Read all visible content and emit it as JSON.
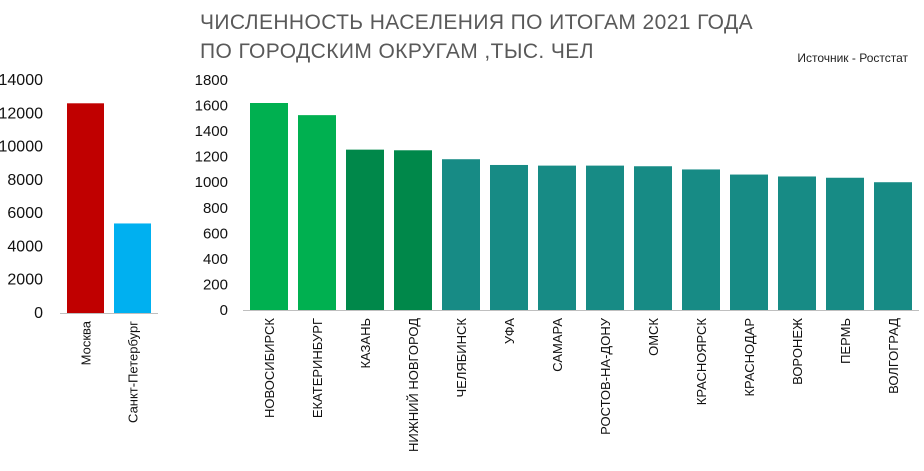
{
  "header": {
    "title_line1": "ЧИСЛЕННОСТЬ НАСЕЛЕНИЯ ПО ИТОГАМ 2021 ГОДА",
    "title_line2": "ПО ГОРОДСКИМ ОКРУГАМ ,ТЫС. ЧЕЛ",
    "source": "Источник - Ростстат"
  },
  "chart_data": [
    {
      "type": "bar",
      "title": "ЧИСЛЕННОСТЬ НАСЕЛЕНИЯ ПО ИТОГАМ 2021 ГОДА ПО ГОРОДСКИМ ОКРУГАМ ,ТЫС. ЧЕЛ",
      "categories": [
        "Москва",
        "Санкт-Петербург"
      ],
      "values": [
        12600,
        5380
      ],
      "colors": [
        "#c00000",
        "#00b0f0"
      ],
      "ylim": [
        0,
        14000
      ],
      "yticks": [
        "0",
        "2000",
        "4000",
        "6000",
        "8000",
        "10000",
        "12000",
        "14000"
      ],
      "grid": false
    },
    {
      "type": "bar",
      "categories": [
        "НОВОСИБИРСК",
        "ЕКАТЕРИНБУРГ",
        "КАЗАНЬ",
        "НИЖНИЙ НОВГОРОД",
        "ЧЕЛЯБИНСК",
        "УФА",
        "САМАРА",
        "РОСТОВ-НА-ДОНУ",
        "ОМСК",
        "КРАСНОЯРСК",
        "КРАСНОДАР",
        "ВОРОНЕЖ",
        "ПЕРМЬ",
        "ВОЛГОГРАД"
      ],
      "values": [
        1620,
        1525,
        1255,
        1250,
        1180,
        1135,
        1130,
        1130,
        1125,
        1100,
        1060,
        1045,
        1035,
        1000
      ],
      "colors": [
        "#00b050",
        "#00b050",
        "#00884a",
        "#00884a",
        "#178b85",
        "#178b85",
        "#178b85",
        "#178b85",
        "#178b85",
        "#178b85",
        "#178b85",
        "#178b85",
        "#178b85",
        "#178b85"
      ],
      "ylim": [
        0,
        1800
      ],
      "yticks": [
        "0",
        "200",
        "400",
        "600",
        "800",
        "1000",
        "1200",
        "1400",
        "1600",
        "1800"
      ],
      "grid": false
    }
  ]
}
